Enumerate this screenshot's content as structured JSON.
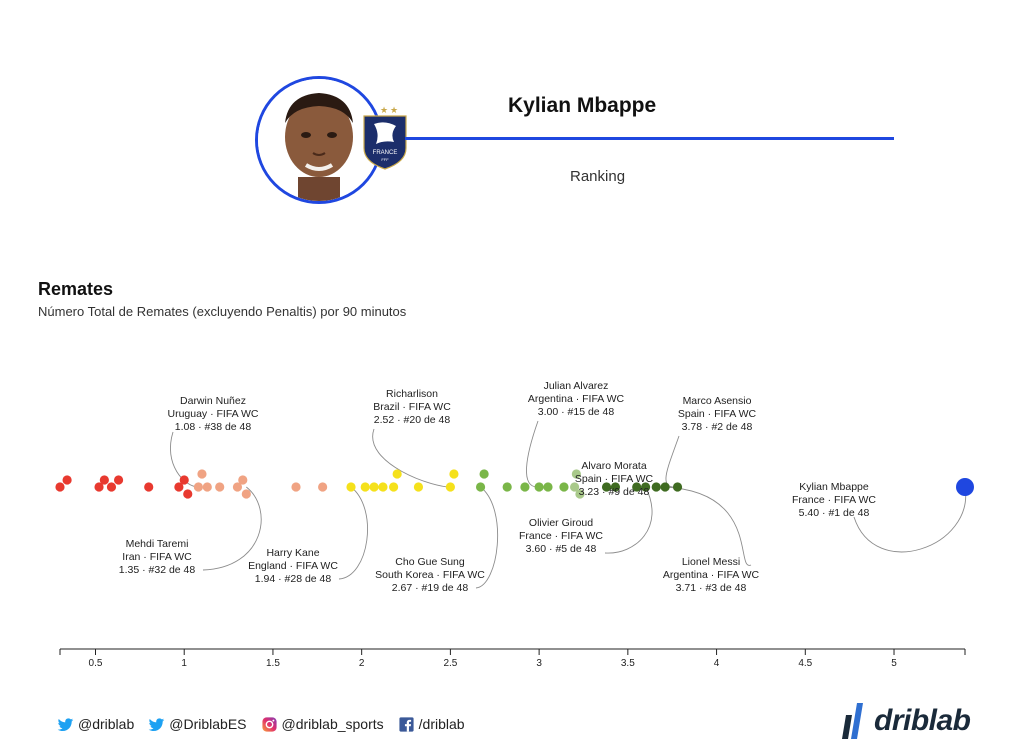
{
  "header": {
    "player_name": "Kylian Mbappe",
    "subtitle": "Ranking",
    "badge_text": "FRANCE",
    "badge_subtext": "FFF",
    "accent_color": "#1f47e0"
  },
  "section": {
    "title": "Remates",
    "subtitle": "Número Total de Remates (excluyendo Penaltis) por 90 minutos"
  },
  "chart_data": {
    "type": "scatter",
    "title": "Remates",
    "subtitle": "Número Total de Remates (excluyendo Penaltis) por 90 minutos",
    "xlim": [
      0.3,
      5.4
    ],
    "x_ticks": [
      0.5,
      1,
      1.5,
      2,
      2.5,
      3,
      3.5,
      4,
      4.5,
      5
    ],
    "x_tick_labels": [
      "0.5",
      "1",
      "1.5",
      "2",
      "2.5",
      "3",
      "3.5",
      "4",
      "4.5",
      "5"
    ],
    "grid": false,
    "highlight_color": "#1f47e0",
    "points": [
      {
        "x": 0.3,
        "color": "#e8392f"
      },
      {
        "x": 0.34,
        "color": "#e8392f"
      },
      {
        "x": 0.52,
        "color": "#e8392f"
      },
      {
        "x": 0.55,
        "color": "#e8392f"
      },
      {
        "x": 0.59,
        "color": "#e8392f"
      },
      {
        "x": 0.63,
        "color": "#e8392f"
      },
      {
        "x": 0.8,
        "color": "#e8392f"
      },
      {
        "x": 0.97,
        "color": "#e8392f"
      },
      {
        "x": 1.0,
        "color": "#e8392f"
      },
      {
        "x": 1.02,
        "color": "#e8392f"
      },
      {
        "x": 1.08,
        "color": "#f0a383"
      },
      {
        "x": 1.1,
        "color": "#f0a383"
      },
      {
        "x": 1.13,
        "color": "#f0a383"
      },
      {
        "x": 1.2,
        "color": "#f0a383"
      },
      {
        "x": 1.3,
        "color": "#f0a383"
      },
      {
        "x": 1.33,
        "color": "#f0a383"
      },
      {
        "x": 1.35,
        "color": "#f0a383"
      },
      {
        "x": 1.63,
        "color": "#f0a383"
      },
      {
        "x": 1.78,
        "color": "#f0a383"
      },
      {
        "x": 1.94,
        "color": "#f5e11b"
      },
      {
        "x": 2.02,
        "color": "#f5e11b"
      },
      {
        "x": 2.07,
        "color": "#f5e11b"
      },
      {
        "x": 2.12,
        "color": "#f5e11b"
      },
      {
        "x": 2.18,
        "color": "#f5e11b"
      },
      {
        "x": 2.2,
        "color": "#f5e11b"
      },
      {
        "x": 2.32,
        "color": "#f5e11b"
      },
      {
        "x": 2.5,
        "color": "#f5e11b"
      },
      {
        "x": 2.52,
        "color": "#f5e11b"
      },
      {
        "x": 2.67,
        "color": "#7ab648"
      },
      {
        "x": 2.69,
        "color": "#7ab648"
      },
      {
        "x": 2.82,
        "color": "#7ab648"
      },
      {
        "x": 2.92,
        "color": "#7ab648"
      },
      {
        "x": 3.0,
        "color": "#7ab648"
      },
      {
        "x": 3.05,
        "color": "#7ab648"
      },
      {
        "x": 3.14,
        "color": "#7ab648"
      },
      {
        "x": 3.2,
        "color": "#a9c98a"
      },
      {
        "x": 3.21,
        "color": "#a9c98a"
      },
      {
        "x": 3.23,
        "color": "#a9c98a"
      },
      {
        "x": 3.38,
        "color": "#3f6b21"
      },
      {
        "x": 3.43,
        "color": "#3f6b21"
      },
      {
        "x": 3.55,
        "color": "#3f6b21"
      },
      {
        "x": 3.6,
        "color": "#3f6b21"
      },
      {
        "x": 3.66,
        "color": "#3f6b21"
      },
      {
        "x": 3.71,
        "color": "#3f6b21"
      },
      {
        "x": 3.78,
        "color": "#3f6b21"
      },
      {
        "x": 5.4,
        "color": "#1f47e0",
        "highlight": true
      }
    ],
    "annotations": [
      {
        "name": "Darwin Nuñez",
        "team": "Uruguay · FIFA WC",
        "value_text": "1.08 · #38 de 48",
        "x": 1.08,
        "position": "above"
      },
      {
        "name": "Richarlison",
        "team": "Brazil · FIFA WC",
        "value_text": "2.52 · #20 de 48",
        "x": 2.52,
        "position": "above"
      },
      {
        "name": "Julian Alvarez",
        "team": "Argentina · FIFA WC",
        "value_text": "3.00 · #15 de 48",
        "x": 3.0,
        "position": "above"
      },
      {
        "name": "Alvaro Morata",
        "team": "Spain · FIFA WC",
        "value_text": "3.23 · #9 de 48",
        "x": 3.23,
        "position": "above"
      },
      {
        "name": "Marco Asensio",
        "team": "Spain · FIFA WC",
        "value_text": "3.78 · #2 de 48",
        "x": 3.78,
        "position": "above"
      },
      {
        "name": "Mehdi Taremi",
        "team": "Iran · FIFA WC",
        "value_text": "1.35 · #32 de 48",
        "x": 1.35,
        "position": "below"
      },
      {
        "name": "Harry Kane",
        "team": "England · FIFA WC",
        "value_text": "1.94 · #28 de 48",
        "x": 1.94,
        "position": "below"
      },
      {
        "name": "Cho Gue Sung",
        "team": "South Korea · FIFA WC",
        "value_text": "2.67 · #19 de 48",
        "x": 2.67,
        "position": "below"
      },
      {
        "name": "Olivier Giroud",
        "team": "France · FIFA WC",
        "value_text": "3.60 · #5 de 48",
        "x": 3.6,
        "position": "below"
      },
      {
        "name": "Lionel Messi",
        "team": "Argentina · FIFA WC",
        "value_text": "3.71 · #3 de 48",
        "x": 3.71,
        "position": "below"
      },
      {
        "name": "Kylian Mbappe",
        "team": "France · FIFA WC",
        "value_text": "5.40 · #1 de 48",
        "x": 5.4,
        "position": "below"
      }
    ]
  },
  "footer": {
    "links": [
      {
        "icon": "twitter-icon",
        "label": "@driblab"
      },
      {
        "icon": "twitter-icon",
        "label": "@DriblabES"
      },
      {
        "icon": "instagram-icon",
        "label": "@driblab_sports"
      },
      {
        "icon": "facebook-icon",
        "label": "/driblab"
      }
    ],
    "brand_name": "driblab",
    "twitter_color": "#1da1f2",
    "facebook_color": "#3b5998"
  }
}
